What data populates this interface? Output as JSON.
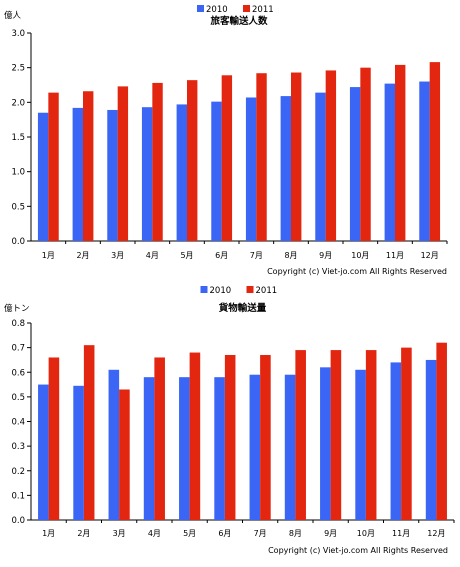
{
  "chart_data": [
    {
      "type": "bar",
      "title": "旅客輸送人数",
      "ylabel": "億人",
      "xlabel": "",
      "categories": [
        "1月",
        "2月",
        "3月",
        "4月",
        "5月",
        "6月",
        "7月",
        "8月",
        "9月",
        "10月",
        "11月",
        "12月"
      ],
      "series": [
        {
          "name": "2010",
          "values": [
            1.85,
            1.92,
            1.89,
            1.93,
            1.97,
            2.01,
            2.07,
            2.09,
            2.14,
            2.22,
            2.27,
            2.3
          ]
        },
        {
          "name": "2011",
          "values": [
            2.14,
            2.16,
            2.23,
            2.28,
            2.32,
            2.39,
            2.42,
            2.43,
            2.46,
            2.5,
            2.54,
            2.58
          ]
        }
      ],
      "ylim": [
        0,
        3.0
      ],
      "yticks": [
        "0.0",
        "0.5",
        "1.0",
        "1.5",
        "2.0",
        "2.5",
        "3.0"
      ],
      "grid": false,
      "legend": "top-center",
      "copyright": "Copyright (c) Viet-jo.com All Rights Reserved",
      "colors": {
        "2010": "#3b66f5",
        "2011": "#e3260f"
      }
    },
    {
      "type": "bar",
      "title": "貨物輸送量",
      "ylabel": "億トン",
      "xlabel": "",
      "categories": [
        "1月",
        "2月",
        "3月",
        "4月",
        "5月",
        "6月",
        "7月",
        "8月",
        "9月",
        "10月",
        "11月",
        "12月"
      ],
      "series": [
        {
          "name": "2010",
          "values": [
            0.55,
            0.545,
            0.61,
            0.58,
            0.58,
            0.58,
            0.59,
            0.59,
            0.62,
            0.61,
            0.64,
            0.65
          ]
        },
        {
          "name": "2011",
          "values": [
            0.66,
            0.71,
            0.53,
            0.66,
            0.68,
            0.67,
            0.67,
            0.69,
            0.69,
            0.69,
            0.7,
            0.72
          ]
        }
      ],
      "ylim": [
        0,
        0.8
      ],
      "yticks": [
        "0.0",
        "0.1",
        "0.2",
        "0.3",
        "0.4",
        "0.5",
        "0.6",
        "0.7",
        "0.8"
      ],
      "grid": false,
      "legend": "top-center",
      "copyright": "Copyright (c) Viet-jo.com All Rights Reserved",
      "colors": {
        "2010": "#3b66f5",
        "2011": "#e3260f"
      }
    }
  ]
}
